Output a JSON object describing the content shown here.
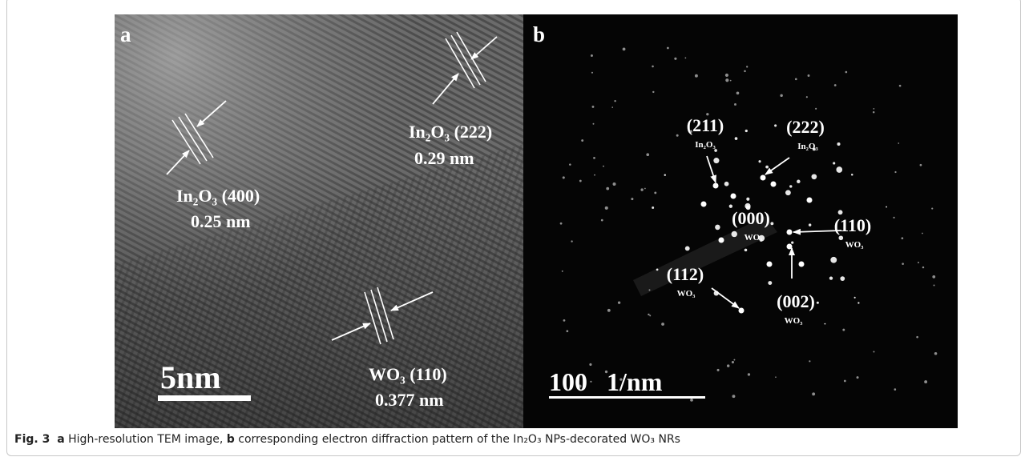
{
  "figure": {
    "panel_a": {
      "label": "a",
      "annotations": [
        "In₂O₃ (400)",
        "0.25 nm",
        "In₂O₃ (222)",
        "0.29 nm",
        "WO₃ (110)",
        "0.377 nm"
      ],
      "scale_bar": "5nm"
    },
    "panel_b": {
      "label": "b",
      "spots": [
        {
          "index": "(211)",
          "phase": "In₂O₃"
        },
        {
          "index": "(222)",
          "phase": "In₂O₃"
        },
        {
          "index": "(000)",
          "phase": "WO₃"
        },
        {
          "index": "(110)",
          "phase": "WO₃"
        },
        {
          "index": "(112)",
          "phase": "WO₃"
        },
        {
          "index": "(002)",
          "phase": "WO₃"
        }
      ],
      "scale_bar": "100   1/nm"
    },
    "caption": {
      "figure_number": "Fig. 3",
      "label_a": "a",
      "text_a": "High-resolution TEM image,",
      "label_b": "b",
      "text_b": "corresponding electron diffraction pattern of the In₂O₃ NPs-decorated WO₃ NRs"
    }
  }
}
